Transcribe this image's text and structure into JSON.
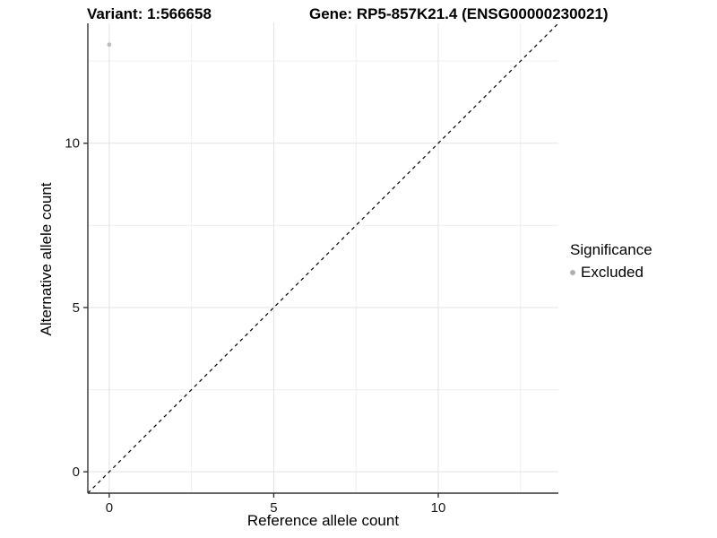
{
  "chart_data": {
    "type": "scatter",
    "title_variant": "Variant: 1:566658",
    "title_gene": "Gene: RP5-857K21.4 (ENSG00000230021)",
    "xlabel": "Reference allele count",
    "ylabel": "Alternative allele count",
    "xlim": [
      -0.65,
      13.65
    ],
    "ylim": [
      -0.65,
      13.65
    ],
    "x_ticks": [
      0,
      5,
      10
    ],
    "x_tick_labels": [
      "0",
      "5",
      "10"
    ],
    "y_ticks": [
      0,
      5,
      10
    ],
    "y_tick_labels": [
      "0",
      "5",
      "10"
    ],
    "minor_ticks": [
      2.5,
      7.5,
      12.5
    ],
    "grid": "major+minor",
    "identity_line": {
      "type": "y=x",
      "style": "dashed",
      "color": "#000000"
    },
    "series": [
      {
        "name": "Excluded",
        "color": "#bdbdbd",
        "points": [
          {
            "x": 0,
            "y": 13
          }
        ]
      }
    ],
    "legend": {
      "title": "Significance",
      "position": "right",
      "entries": [
        {
          "label": "Excluded",
          "color": "#b0b0b0",
          "shape": "circle"
        }
      ]
    }
  },
  "colors": {
    "background": "#ffffff",
    "axis_line": "#333333",
    "tick_mark": "#333333",
    "tick_label": "#1a1a1a",
    "grid_major": "#e3e3e3",
    "grid_minor": "#f0f0f0",
    "title_text": "#000000"
  }
}
